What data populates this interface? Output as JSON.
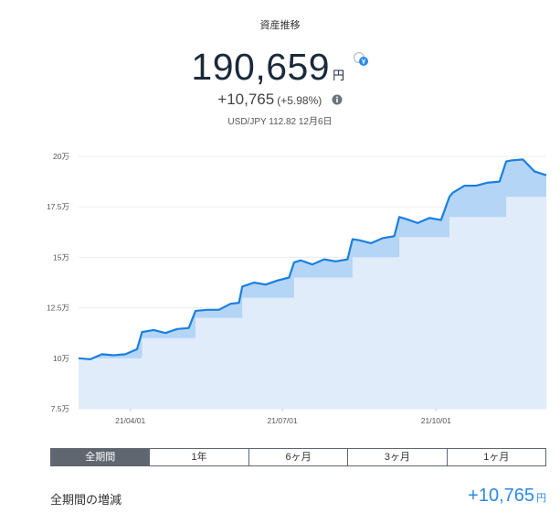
{
  "header": {
    "title": "資産推移",
    "total": "190,659",
    "total_unit": "円",
    "change": "+10,765",
    "change_pct": "(+5.98%)",
    "fx": "USD/JPY 112.82 12月6日"
  },
  "chart_data": {
    "type": "area",
    "x": [
      "21/03/01",
      "21/03/08",
      "21/03/15",
      "21/03/22",
      "21/03/29",
      "21/04/05",
      "21/04/08",
      "21/04/15",
      "21/04/22",
      "21/04/29",
      "21/05/06",
      "21/05/10",
      "21/05/17",
      "21/05/24",
      "21/05/31",
      "21/06/05",
      "21/06/07",
      "21/06/14",
      "21/06/21",
      "21/06/28",
      "21/07/05",
      "21/07/08",
      "21/07/12",
      "21/07/19",
      "21/07/26",
      "21/08/02",
      "21/08/09",
      "21/08/12",
      "21/08/16",
      "21/08/23",
      "21/08/30",
      "21/09/06",
      "21/09/09",
      "21/09/13",
      "21/09/20",
      "21/09/27",
      "21/10/04",
      "21/10/09",
      "21/10/11",
      "21/10/18",
      "21/10/25",
      "21/11/01",
      "21/11/08",
      "21/11/12",
      "21/11/15",
      "21/11/22",
      "21/11/29",
      "21/12/06"
    ],
    "series": [
      {
        "color": "#1a7fe0",
        "fill": "#b5d5f6",
        "values": [
          10.0,
          9.95,
          10.2,
          10.15,
          10.2,
          10.45,
          11.3,
          11.4,
          11.25,
          11.45,
          11.5,
          12.35,
          12.4,
          12.4,
          12.7,
          12.75,
          13.55,
          13.75,
          13.65,
          13.85,
          14.0,
          14.75,
          14.85,
          14.65,
          14.9,
          14.8,
          14.9,
          15.9,
          15.85,
          15.7,
          15.95,
          16.05,
          17.0,
          16.9,
          16.7,
          16.95,
          16.85,
          18.0,
          18.2,
          18.55,
          18.55,
          18.7,
          18.75,
          19.75,
          19.8,
          19.85,
          19.25,
          19.07
        ]
      },
      {
        "color": "#e0ecfa",
        "step": true,
        "values": [
          10,
          10,
          10,
          10,
          10,
          10,
          11,
          11,
          11,
          11,
          11,
          12,
          12,
          12,
          12,
          12,
          13,
          13,
          13,
          13,
          13,
          14,
          14,
          14,
          14,
          14,
          14,
          15,
          15,
          15,
          15,
          15,
          16,
          16,
          16,
          16,
          16,
          17,
          17,
          17,
          17,
          17,
          17,
          18,
          18,
          18,
          18,
          18
        ]
      }
    ],
    "xlim": [
      "21/03/01",
      "21/12/06"
    ],
    "xticks": [
      "21/04/01",
      "21/07/01",
      "21/10/01"
    ],
    "ylim": [
      7.5,
      20.5
    ],
    "yticks": [
      {
        "value": 7.5,
        "label": "7.5万"
      },
      {
        "value": 10,
        "label": "10万"
      },
      {
        "value": 12.5,
        "label": "12.5万"
      },
      {
        "value": 15,
        "label": "15万"
      },
      {
        "value": 17.5,
        "label": "17.5万"
      },
      {
        "value": 20,
        "label": "20万"
      }
    ],
    "grid": true
  },
  "tabs": [
    "全期間",
    "1年",
    "6ヶ月",
    "3ヶ月",
    "1ヶ月"
  ],
  "active_tab": 0,
  "summary": {
    "label": "全期間の増減",
    "value": "+10,765",
    "unit": "円"
  }
}
